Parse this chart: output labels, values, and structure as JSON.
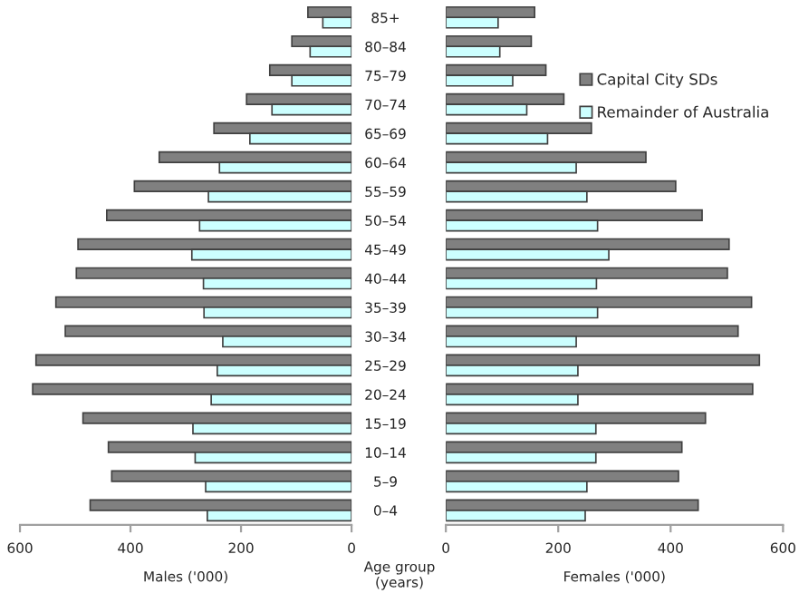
{
  "chart_data": [
    {
      "type": "bar",
      "orientation": "horizontal",
      "xlabel": "Males ('000)",
      "categories": [
        "85+",
        "80–84",
        "75–79",
        "70–74",
        "65–69",
        "60–64",
        "55–59",
        "50–54",
        "45–49",
        "40–44",
        "35–39",
        "30–34",
        "25–29",
        "20–24",
        "15–19",
        "10–14",
        "5–9",
        "0–4"
      ],
      "series": [
        {
          "color": "#808080",
          "values": [
            79,
            108,
            148,
            190,
            249,
            348,
            393,
            443,
            495,
            498,
            535,
            518,
            571,
            577,
            486,
            440,
            434,
            473
          ]
        },
        {
          "color": "#ccffff",
          "values": [
            52,
            75,
            108,
            144,
            184,
            239,
            259,
            275,
            289,
            268,
            267,
            233,
            243,
            254,
            287,
            283,
            264,
            261
          ]
        }
      ],
      "xlim": [
        600,
        0
      ],
      "xticks": [
        600,
        400,
        200,
        0
      ],
      "tick_labels": "x",
      "grid": false,
      "legend": false
    },
    {
      "type": "bar",
      "orientation": "horizontal",
      "xlabel": "Females ('000)",
      "categories": [
        "85+",
        "80–84",
        "75–79",
        "70–74",
        "65–69",
        "60–64",
        "55–59",
        "50–54",
        "45–49",
        "40–44",
        "35–39",
        "30–34",
        "25–29",
        "20–24",
        "15–19",
        "10–14",
        "5–9",
        "0–4"
      ],
      "series": [
        {
          "name": "Capital City SDs",
          "color": "#808080",
          "values": [
            158,
            152,
            178,
            210,
            259,
            356,
            409,
            456,
            504,
            501,
            544,
            520,
            558,
            546,
            462,
            420,
            414,
            449
          ]
        },
        {
          "name": "Remainder of Australia",
          "color": "#ccffff",
          "values": [
            93,
            96,
            119,
            144,
            181,
            232,
            251,
            270,
            290,
            268,
            270,
            232,
            235,
            235,
            267,
            267,
            251,
            248
          ]
        }
      ],
      "xlim": [
        0,
        600
      ],
      "xticks": [
        0,
        200,
        400,
        600
      ],
      "grid": false,
      "legend": "right",
      "annotations": [
        "Age group\n(years)"
      ]
    }
  ]
}
